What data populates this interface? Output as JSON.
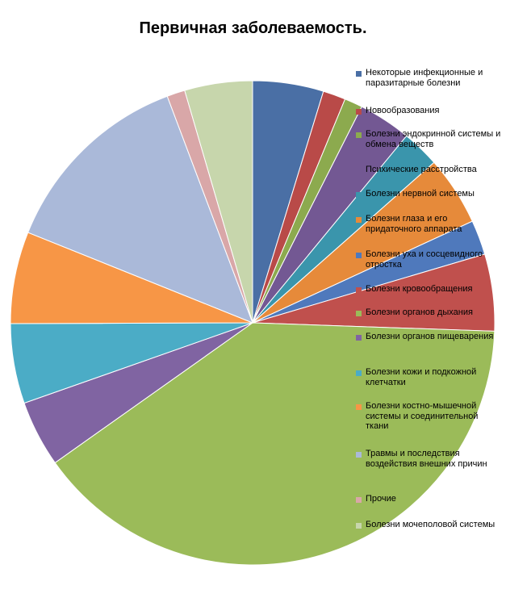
{
  "chart_data": {
    "type": "pie",
    "title": "Первичная заболеваемость.",
    "legend_position": "right",
    "series": [
      {
        "name": "Некоторые инфекционные и паразитарные болезни",
        "value": 4.7,
        "color": "#4A6FA5"
      },
      {
        "name": "Новообразования",
        "value": 1.5,
        "color": "#B94A48"
      },
      {
        "name": "Болезни эндокринной системы и обмена веществ",
        "value": 1.2,
        "color": "#8CAA4E"
      },
      {
        "name": "Психические расстройства",
        "value": 3.5,
        "color": "#735893"
      },
      {
        "name": "Болезни нервной системы",
        "value": 2.5,
        "color": "#3A95AC"
      },
      {
        "name": "Болезни глаза и его придаточного аппарата",
        "value": 4.6,
        "color": "#E68A3A"
      },
      {
        "name": "Болезни уха и сосцевидного отростка",
        "value": 2.3,
        "color": "#4F79BC"
      },
      {
        "name": "Болезни кровообращения",
        "value": 5.1,
        "color": "#C0504D"
      },
      {
        "name": "Болезни органов дыхания",
        "value": 39.4,
        "color": "#9BBB59"
      },
      {
        "name": "Болезни органов пищеварения",
        "value": 4.4,
        "color": "#8064A2"
      },
      {
        "name": "Болезни кожи и подкожной клетчатки",
        "value": 5.3,
        "color": "#4BACC6"
      },
      {
        "name": "Болезни костно-мышечной системы и соединительной ткани",
        "value": 6.1,
        "color": "#F79646"
      },
      {
        "name": "Травмы и последствия воздействия внешних причин",
        "value": 13.1,
        "color": "#AAB9D9"
      },
      {
        "name": "Прочие",
        "value": 1.2,
        "color": "#D9A7A8"
      },
      {
        "name": "Болезни мочеполовой системы",
        "value": 4.5,
        "color": "#C7D6AC"
      }
    ]
  }
}
